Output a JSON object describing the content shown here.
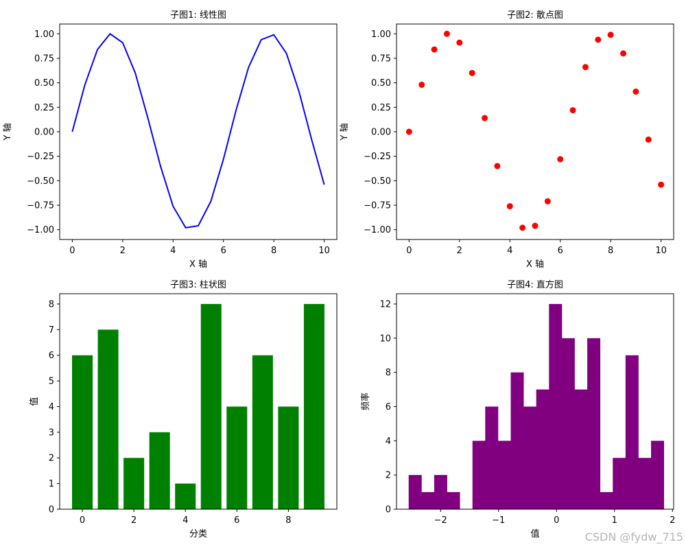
{
  "chart_data": [
    {
      "type": "line",
      "title": "子图1: 线性图",
      "xlabel": "X 轴",
      "ylabel": "Y 轴",
      "xlim": [
        -0.5,
        10.5
      ],
      "ylim": [
        -1.1,
        1.1
      ],
      "x_ticks": [
        0,
        2,
        4,
        6,
        8,
        10
      ],
      "y_ticks": [
        -1.0,
        -0.75,
        -0.5,
        -0.25,
        0.0,
        0.25,
        0.5,
        0.75,
        1.0
      ],
      "x_tick_labels": [
        "0",
        "2",
        "4",
        "6",
        "8",
        "10"
      ],
      "y_tick_labels": [
        "−1.00",
        "−0.75",
        "−0.50",
        "−0.25",
        "0.00",
        "0.25",
        "0.50",
        "0.75",
        "1.00"
      ],
      "series": [
        {
          "color": "#0000ff",
          "x": [
            0,
            0.5,
            1,
            1.5,
            2,
            2.5,
            3,
            3.5,
            4,
            4.5,
            5,
            5.5,
            6,
            6.5,
            7,
            7.5,
            8,
            8.5,
            9,
            9.5,
            10
          ],
          "y": [
            0,
            0.48,
            0.84,
            1.0,
            0.91,
            0.6,
            0.14,
            -0.35,
            -0.76,
            -0.98,
            -0.96,
            -0.71,
            -0.28,
            0.22,
            0.66,
            0.94,
            0.99,
            0.8,
            0.41,
            -0.08,
            -0.54
          ]
        }
      ]
    },
    {
      "type": "scatter",
      "title": "子图2: 散点图",
      "xlabel": "X 轴",
      "ylabel": "Y 轴",
      "xlim": [
        -0.5,
        10.5
      ],
      "ylim": [
        -1.1,
        1.1
      ],
      "x_ticks": [
        0,
        2,
        4,
        6,
        8,
        10
      ],
      "y_ticks": [
        -1.0,
        -0.75,
        -0.5,
        -0.25,
        0.0,
        0.25,
        0.5,
        0.75,
        1.0
      ],
      "x_tick_labels": [
        "0",
        "2",
        "4",
        "6",
        "8",
        "10"
      ],
      "y_tick_labels": [
        "−1.00",
        "−0.75",
        "−0.50",
        "−0.25",
        "0.00",
        "0.25",
        "0.50",
        "0.75",
        "1.00"
      ],
      "series": [
        {
          "color": "#ff0000",
          "x": [
            0,
            0.5,
            1,
            1.5,
            2,
            2.5,
            3,
            3.5,
            4,
            4.5,
            5,
            5.5,
            6,
            6.5,
            7,
            7.5,
            8,
            8.5,
            9,
            9.5,
            10
          ],
          "y": [
            0,
            0.48,
            0.84,
            1.0,
            0.91,
            0.6,
            0.14,
            -0.35,
            -0.76,
            -0.98,
            -0.96,
            -0.71,
            -0.28,
            0.22,
            0.66,
            0.94,
            0.99,
            0.8,
            0.41,
            -0.08,
            -0.54
          ]
        }
      ]
    },
    {
      "type": "bar",
      "title": "子图3: 柱状图",
      "xlabel": "分类",
      "ylabel": "值",
      "xlim": [
        -0.88,
        9.88
      ],
      "ylim": [
        0,
        8.4
      ],
      "x_ticks": [
        0,
        2,
        4,
        6,
        8
      ],
      "y_ticks": [
        0,
        1,
        2,
        3,
        4,
        5,
        6,
        7,
        8
      ],
      "x_tick_labels": [
        "0",
        "2",
        "4",
        "6",
        "8"
      ],
      "y_tick_labels": [
        "0",
        "1",
        "2",
        "3",
        "4",
        "5",
        "6",
        "7",
        "8"
      ],
      "color": "#008000",
      "categories": [
        0,
        1,
        2,
        3,
        4,
        5,
        6,
        7,
        8,
        9
      ],
      "values": [
        6,
        7,
        2,
        3,
        1,
        8,
        4,
        6,
        4,
        8
      ]
    },
    {
      "type": "bar",
      "subtype": "histogram",
      "title": "子图4: 直方图",
      "xlabel": "值",
      "ylabel": "频率",
      "xlim": [
        -2.76,
        2.02
      ],
      "ylim": [
        0,
        12.6
      ],
      "x_ticks": [
        -2,
        -1,
        0,
        1,
        2
      ],
      "y_ticks": [
        0,
        2,
        4,
        6,
        8,
        10,
        12
      ],
      "x_tick_labels": [
        "−2",
        "−1",
        "0",
        "1",
        "2"
      ],
      "y_tick_labels": [
        "0",
        "2",
        "4",
        "6",
        "8",
        "10",
        "12"
      ],
      "color": "#800080",
      "bin_edges": [
        -2.55,
        -2.33,
        -2.11,
        -1.89,
        -1.67,
        -1.45,
        -1.23,
        -1.01,
        -0.79,
        -0.57,
        -0.35,
        -0.13,
        0.09,
        0.31,
        0.53,
        0.75,
        0.97,
        1.19,
        1.41,
        1.63,
        1.85
      ],
      "values": [
        2,
        1,
        2,
        1,
        0,
        4,
        6,
        4,
        8,
        6,
        7,
        12,
        10,
        7,
        10,
        1,
        3,
        9,
        3,
        4
      ]
    }
  ],
  "watermark": "CSDN @fydw_715"
}
